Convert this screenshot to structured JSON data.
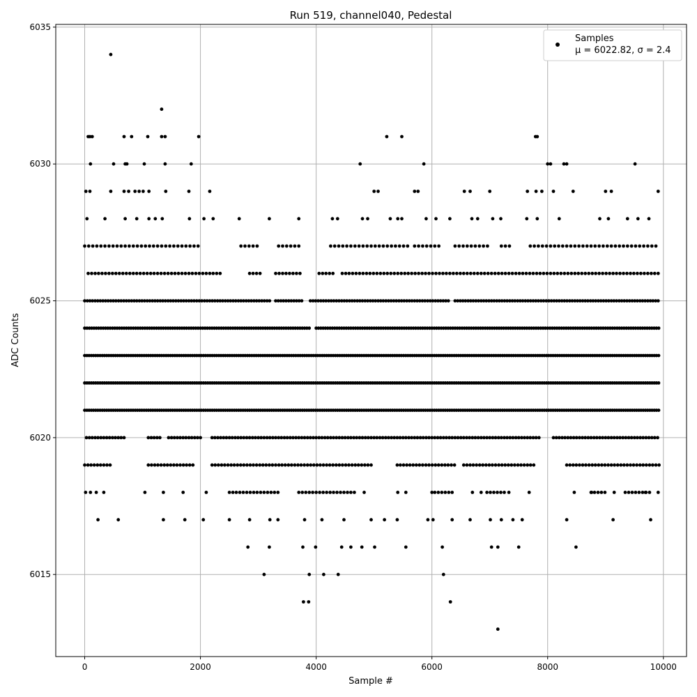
{
  "chart_data": {
    "type": "scatter",
    "title": "Run 519, channel040, Pedestal",
    "xlabel": "Sample #",
    "ylabel": "ADC Counts",
    "xlim": [
      -500,
      10400
    ],
    "ylim": [
      6012,
      6035.1
    ],
    "x_ticks": [
      0,
      2000,
      4000,
      6000,
      8000,
      10000
    ],
    "y_ticks": [
      6015,
      6020,
      6025,
      6030,
      6035
    ],
    "x_tick_labels": [
      "0",
      "2000",
      "4000",
      "6000",
      "8000",
      "10000"
    ],
    "y_tick_labels": [
      "6015",
      "6020",
      "6025",
      "6030",
      "6035"
    ],
    "grid": true,
    "legend_position": "top-right",
    "legend": {
      "label": "Samples",
      "stats": "μ = 6022.82, σ = 2.4"
    },
    "marker_color": "#000000",
    "series": [
      {
        "name": "Samples",
        "points": [
          [
            450,
            6034
          ],
          [
            1330,
            6032
          ],
          [
            60,
            6031
          ],
          [
            90,
            6031
          ],
          [
            130,
            6031
          ],
          [
            680,
            6031
          ],
          [
            810,
            6031
          ],
          [
            1090,
            6031
          ],
          [
            1330,
            6031
          ],
          [
            1390,
            6031
          ],
          [
            1970,
            6031
          ],
          [
            5220,
            6031
          ],
          [
            5480,
            6031
          ],
          [
            7790,
            6031
          ],
          [
            7820,
            6031
          ],
          [
            100,
            6030
          ],
          [
            500,
            6030
          ],
          [
            700,
            6030
          ],
          [
            730,
            6030
          ],
          [
            1030,
            6030
          ],
          [
            1390,
            6030
          ],
          [
            1840,
            6030
          ],
          [
            4760,
            6030
          ],
          [
            5860,
            6030
          ],
          [
            8000,
            6030
          ],
          [
            8050,
            6030
          ],
          [
            8280,
            6030
          ],
          [
            8330,
            6030
          ],
          [
            9510,
            6030
          ],
          [
            20,
            6029
          ],
          [
            90,
            6029
          ],
          [
            450,
            6029
          ],
          [
            680,
            6029
          ],
          [
            760,
            6029
          ],
          [
            870,
            6029
          ],
          [
            940,
            6029
          ],
          [
            1010,
            6029
          ],
          [
            1110,
            6029
          ],
          [
            1400,
            6029
          ],
          [
            1800,
            6029
          ],
          [
            2160,
            6029
          ],
          [
            5000,
            6029
          ],
          [
            5070,
            6029
          ],
          [
            5700,
            6029
          ],
          [
            5760,
            6029
          ],
          [
            6560,
            6029
          ],
          [
            6660,
            6029
          ],
          [
            7000,
            6029
          ],
          [
            7650,
            6029
          ],
          [
            7800,
            6029
          ],
          [
            7900,
            6029
          ],
          [
            8100,
            6029
          ],
          [
            8440,
            6029
          ],
          [
            9000,
            6029
          ],
          [
            9100,
            6029
          ],
          [
            9910,
            6029
          ],
          [
            40,
            6028
          ],
          [
            350,
            6028
          ],
          [
            700,
            6028
          ],
          [
            900,
            6028
          ],
          [
            1110,
            6028
          ],
          [
            1220,
            6028
          ],
          [
            1340,
            6028
          ],
          [
            1810,
            6028
          ],
          [
            2060,
            6028
          ],
          [
            2220,
            6028
          ],
          [
            2670,
            6028
          ],
          [
            3190,
            6028
          ],
          [
            3700,
            6028
          ],
          [
            4280,
            6028
          ],
          [
            4370,
            6028
          ],
          [
            4800,
            6028
          ],
          [
            4890,
            6028
          ],
          [
            5280,
            6028
          ],
          [
            5410,
            6028
          ],
          [
            5480,
            6028
          ],
          [
            5900,
            6028
          ],
          [
            6070,
            6028
          ],
          [
            6310,
            6028
          ],
          [
            6690,
            6028
          ],
          [
            6790,
            6028
          ],
          [
            7050,
            6028
          ],
          [
            7190,
            6028
          ],
          [
            7640,
            6028
          ],
          [
            7820,
            6028
          ],
          [
            8200,
            6028
          ],
          [
            8900,
            6028
          ],
          [
            9050,
            6028
          ],
          [
            9380,
            6028
          ],
          [
            9560,
            6028
          ],
          [
            9750,
            6028
          ],
          [
            16,
            6018
          ],
          [
            100,
            6018
          ],
          [
            200,
            6018
          ],
          [
            330,
            6018
          ],
          [
            1040,
            6018
          ],
          [
            1360,
            6018
          ],
          [
            1700,
            6018
          ],
          [
            2100,
            6018
          ],
          [
            4830,
            6018
          ],
          [
            5410,
            6018
          ],
          [
            5550,
            6018
          ],
          [
            6000,
            6018
          ],
          [
            6700,
            6018
          ],
          [
            6850,
            6018
          ],
          [
            7330,
            6018
          ],
          [
            7680,
            6018
          ],
          [
            8460,
            6018
          ],
          [
            8760,
            6018
          ],
          [
            9150,
            6018
          ],
          [
            9340,
            6018
          ],
          [
            9690,
            6018
          ],
          [
            9910,
            6018
          ],
          [
            230,
            6017
          ],
          [
            580,
            6017
          ],
          [
            1360,
            6017
          ],
          [
            1730,
            6017
          ],
          [
            2050,
            6017
          ],
          [
            2500,
            6017
          ],
          [
            2850,
            6017
          ],
          [
            3200,
            6017
          ],
          [
            3340,
            6017
          ],
          [
            3800,
            6017
          ],
          [
            4100,
            6017
          ],
          [
            4480,
            6017
          ],
          [
            4950,
            6017
          ],
          [
            5180,
            6017
          ],
          [
            5400,
            6017
          ],
          [
            5930,
            6017
          ],
          [
            6020,
            6017
          ],
          [
            6350,
            6017
          ],
          [
            6660,
            6017
          ],
          [
            7010,
            6017
          ],
          [
            7200,
            6017
          ],
          [
            7400,
            6017
          ],
          [
            7560,
            6017
          ],
          [
            8330,
            6017
          ],
          [
            9130,
            6017
          ],
          [
            9780,
            6017
          ],
          [
            2820,
            6016
          ],
          [
            3190,
            6016
          ],
          [
            3770,
            6016
          ],
          [
            3990,
            6016
          ],
          [
            4440,
            6016
          ],
          [
            4600,
            6016
          ],
          [
            4790,
            6016
          ],
          [
            5010,
            6016
          ],
          [
            5550,
            6016
          ],
          [
            6180,
            6016
          ],
          [
            7030,
            6016
          ],
          [
            7140,
            6016
          ],
          [
            7500,
            6016
          ],
          [
            8490,
            6016
          ],
          [
            3100,
            6015
          ],
          [
            3880,
            6015
          ],
          [
            4130,
            6015
          ],
          [
            4380,
            6015
          ],
          [
            6200,
            6015
          ],
          [
            3780,
            6014
          ],
          [
            3870,
            6014
          ],
          [
            6320,
            6014
          ],
          [
            7140,
            6013
          ]
        ],
        "dense_runs": [
          {
            "y": 6027,
            "segments": [
              [
                0,
                2000
              ],
              [
                2700,
                3000
              ],
              [
                3350,
                3700
              ],
              [
                4250,
                5600
              ],
              [
                5700,
                6150
              ],
              [
                6400,
                7000
              ],
              [
                7200,
                7350
              ],
              [
                7700,
                9930
              ]
            ],
            "step": 70
          },
          {
            "y": 6026,
            "segments": [
              [
                60,
                2350
              ],
              [
                2850,
                3050
              ],
              [
                3300,
                3760
              ],
              [
                4050,
                4300
              ],
              [
                4450,
                9930
              ]
            ],
            "step": 60
          },
          {
            "y": 6025,
            "segments": [
              [
                0,
                3200
              ],
              [
                3300,
                3760
              ],
              [
                3900,
                6310
              ],
              [
                6400,
                9930
              ]
            ],
            "step": 45
          },
          {
            "y": 6024,
            "segments": [
              [
                0,
                3900
              ],
              [
                4000,
                9930
              ]
            ],
            "step": 40
          },
          {
            "y": 6023,
            "segments": [
              [
                0,
                9930
              ]
            ],
            "step": 38
          },
          {
            "y": 6022,
            "segments": [
              [
                0,
                9930
              ]
            ],
            "step": 38
          },
          {
            "y": 6021,
            "segments": [
              [
                0,
                9930
              ]
            ],
            "step": 38
          },
          {
            "y": 6020,
            "segments": [
              [
                30,
                700
              ],
              [
                1100,
                1300
              ],
              [
                1450,
                2000
              ],
              [
                2200,
                7850
              ],
              [
                8100,
                9930
              ]
            ],
            "step": 50
          },
          {
            "y": 6019,
            "segments": [
              [
                0,
                450
              ],
              [
                1100,
                1900
              ],
              [
                2200,
                5000
              ],
              [
                5400,
                6400
              ],
              [
                6550,
                7800
              ],
              [
                8330,
                9930
              ]
            ],
            "step": 55
          },
          {
            "y": 6018,
            "segments": [
              [
                2500,
                3350
              ],
              [
                3700,
                4700
              ],
              [
                6050,
                6400
              ],
              [
                6950,
                7300
              ],
              [
                8750,
                9000
              ],
              [
                9400,
                9800
              ]
            ],
            "step": 60
          }
        ]
      }
    ]
  }
}
